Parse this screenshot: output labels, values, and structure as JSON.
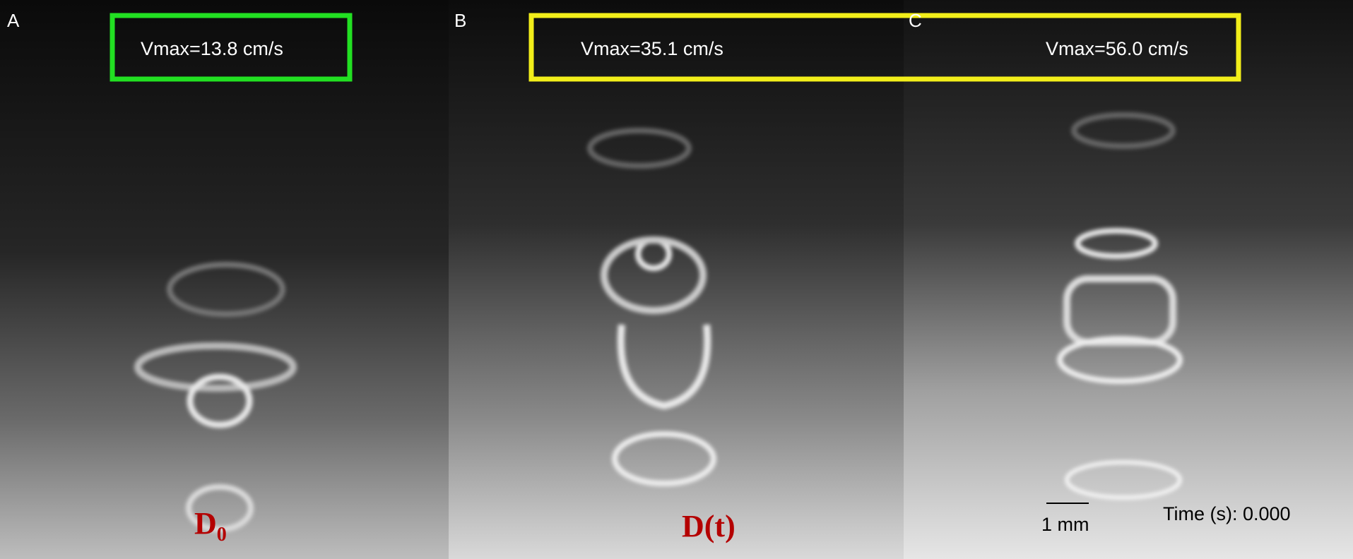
{
  "panels": [
    {
      "label": "A",
      "vmax": "Vmax=13.8 cm/s"
    },
    {
      "label": "B",
      "vmax": "Vmax=35.1 cm/s"
    },
    {
      "label": "C",
      "vmax": "Vmax=56.0 cm/s"
    }
  ],
  "annotations": {
    "d0": {
      "base": "D",
      "sub": "0"
    },
    "dt": "D(t)"
  },
  "scale_bar": "1 mm",
  "time": "Time (s): 0.000"
}
